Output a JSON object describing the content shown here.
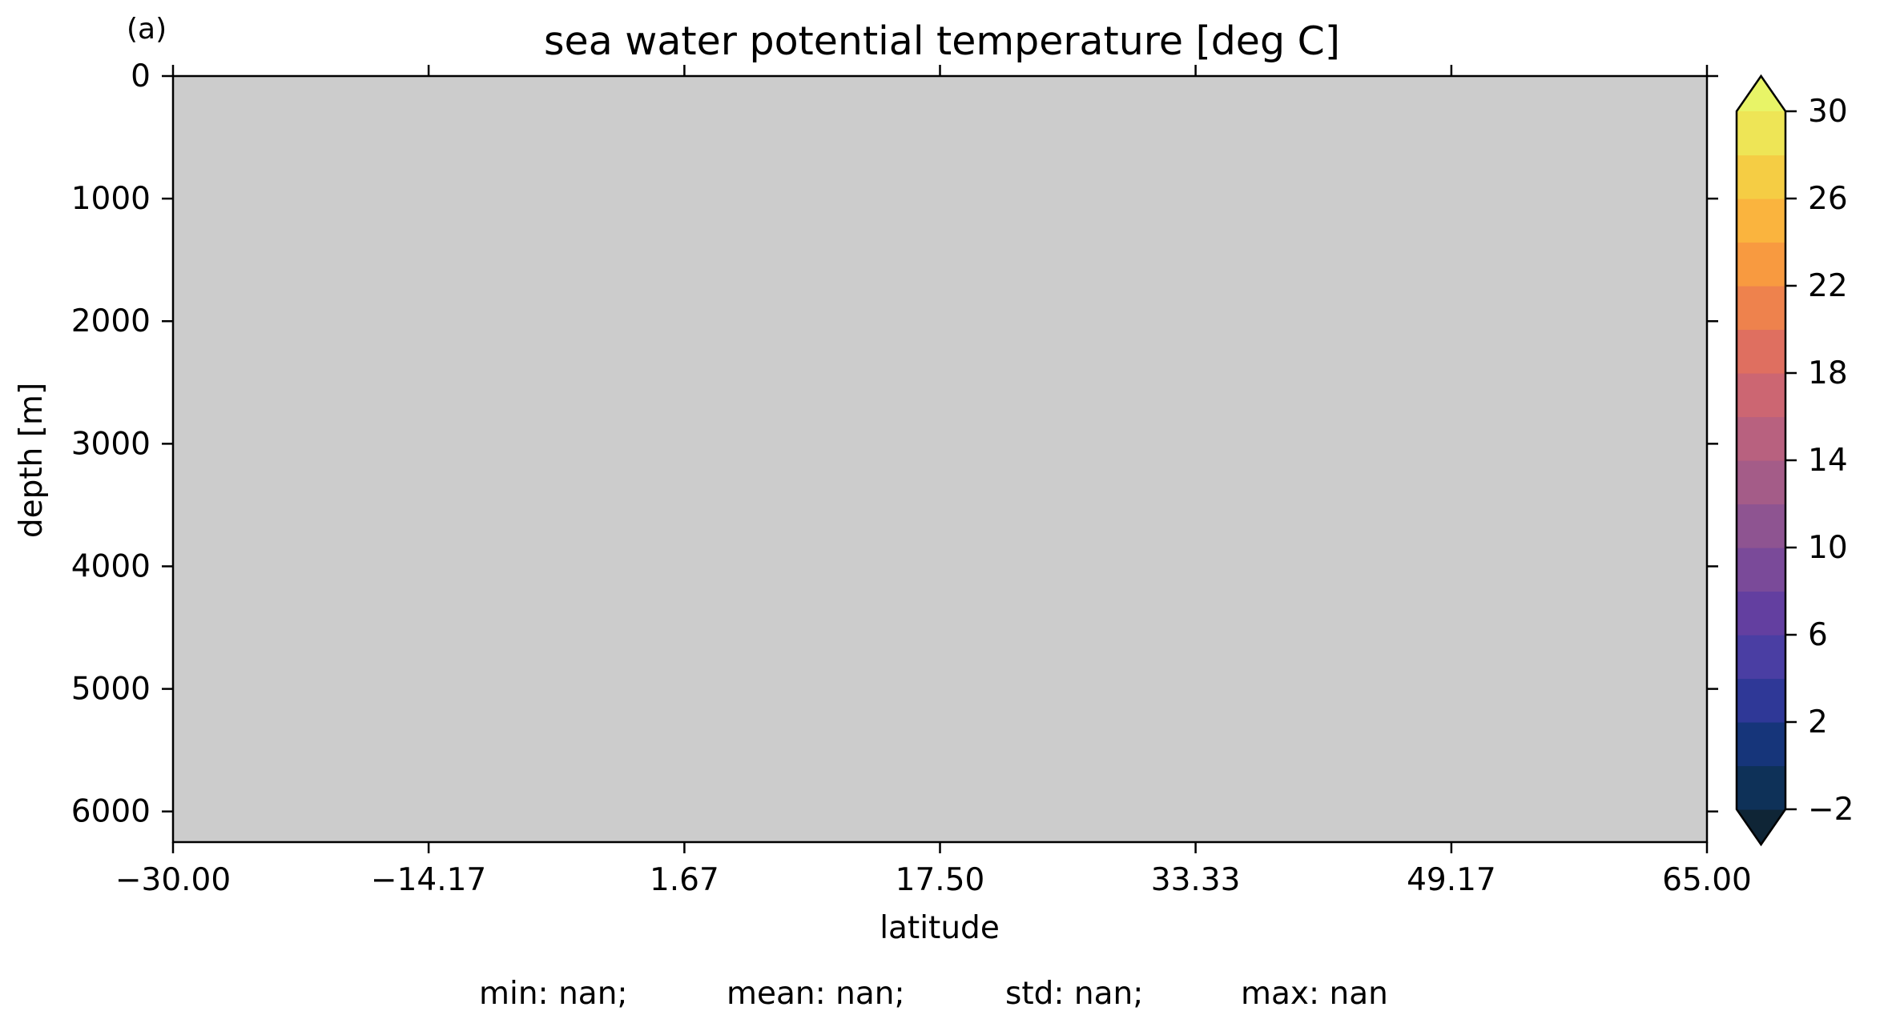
{
  "panel_label": "(a)",
  "stats": {
    "min": "min: nan;",
    "mean": "mean: nan;",
    "std": "std: nan;",
    "max": "max: nan"
  },
  "colors": {
    "field_fill": "#cccccc",
    "axis": "#000000",
    "colorbar_levels": [
      "#0f2536",
      "#0e3158",
      "#16357a",
      "#2f3897",
      "#4a3ea3",
      "#633fa0",
      "#7a4a99",
      "#8e5491",
      "#a45c88",
      "#b8617f",
      "#cc6672",
      "#df6f60",
      "#ee824d",
      "#f89a40",
      "#fab43e",
      "#f5cd44",
      "#eee556",
      "#e8f467"
    ]
  },
  "chart_data": {
    "type": "heatmap",
    "title": "sea water potential temperature [deg C]",
    "xlabel": "latitude",
    "ylabel": "depth [m]",
    "xlim": [
      -30.0,
      65.0
    ],
    "ylim": [
      6250,
      0
    ],
    "y_inverted": true,
    "x_ticks": [
      -30.0,
      -14.17,
      1.67,
      17.5,
      33.33,
      49.17,
      65.0
    ],
    "x_tick_labels": [
      "−30.00",
      "−14.17",
      "1.67",
      "17.50",
      "33.33",
      "49.17",
      "65.00"
    ],
    "y_ticks": [
      0,
      1000,
      2000,
      3000,
      4000,
      5000,
      6000
    ],
    "y_tick_labels": [
      "0",
      "1000",
      "2000",
      "3000",
      "4000",
      "5000",
      "6000"
    ],
    "values": "all NaN (no valid data)",
    "colorbar": {
      "min": -2,
      "max": 30,
      "level_step": 2,
      "extend": "both",
      "ticks": [
        -2,
        2,
        6,
        10,
        14,
        18,
        22,
        26,
        30
      ],
      "tick_labels": [
        "−2",
        "2",
        "6",
        "10",
        "14",
        "18",
        "22",
        "26",
        "30"
      ]
    },
    "grid": false
  }
}
